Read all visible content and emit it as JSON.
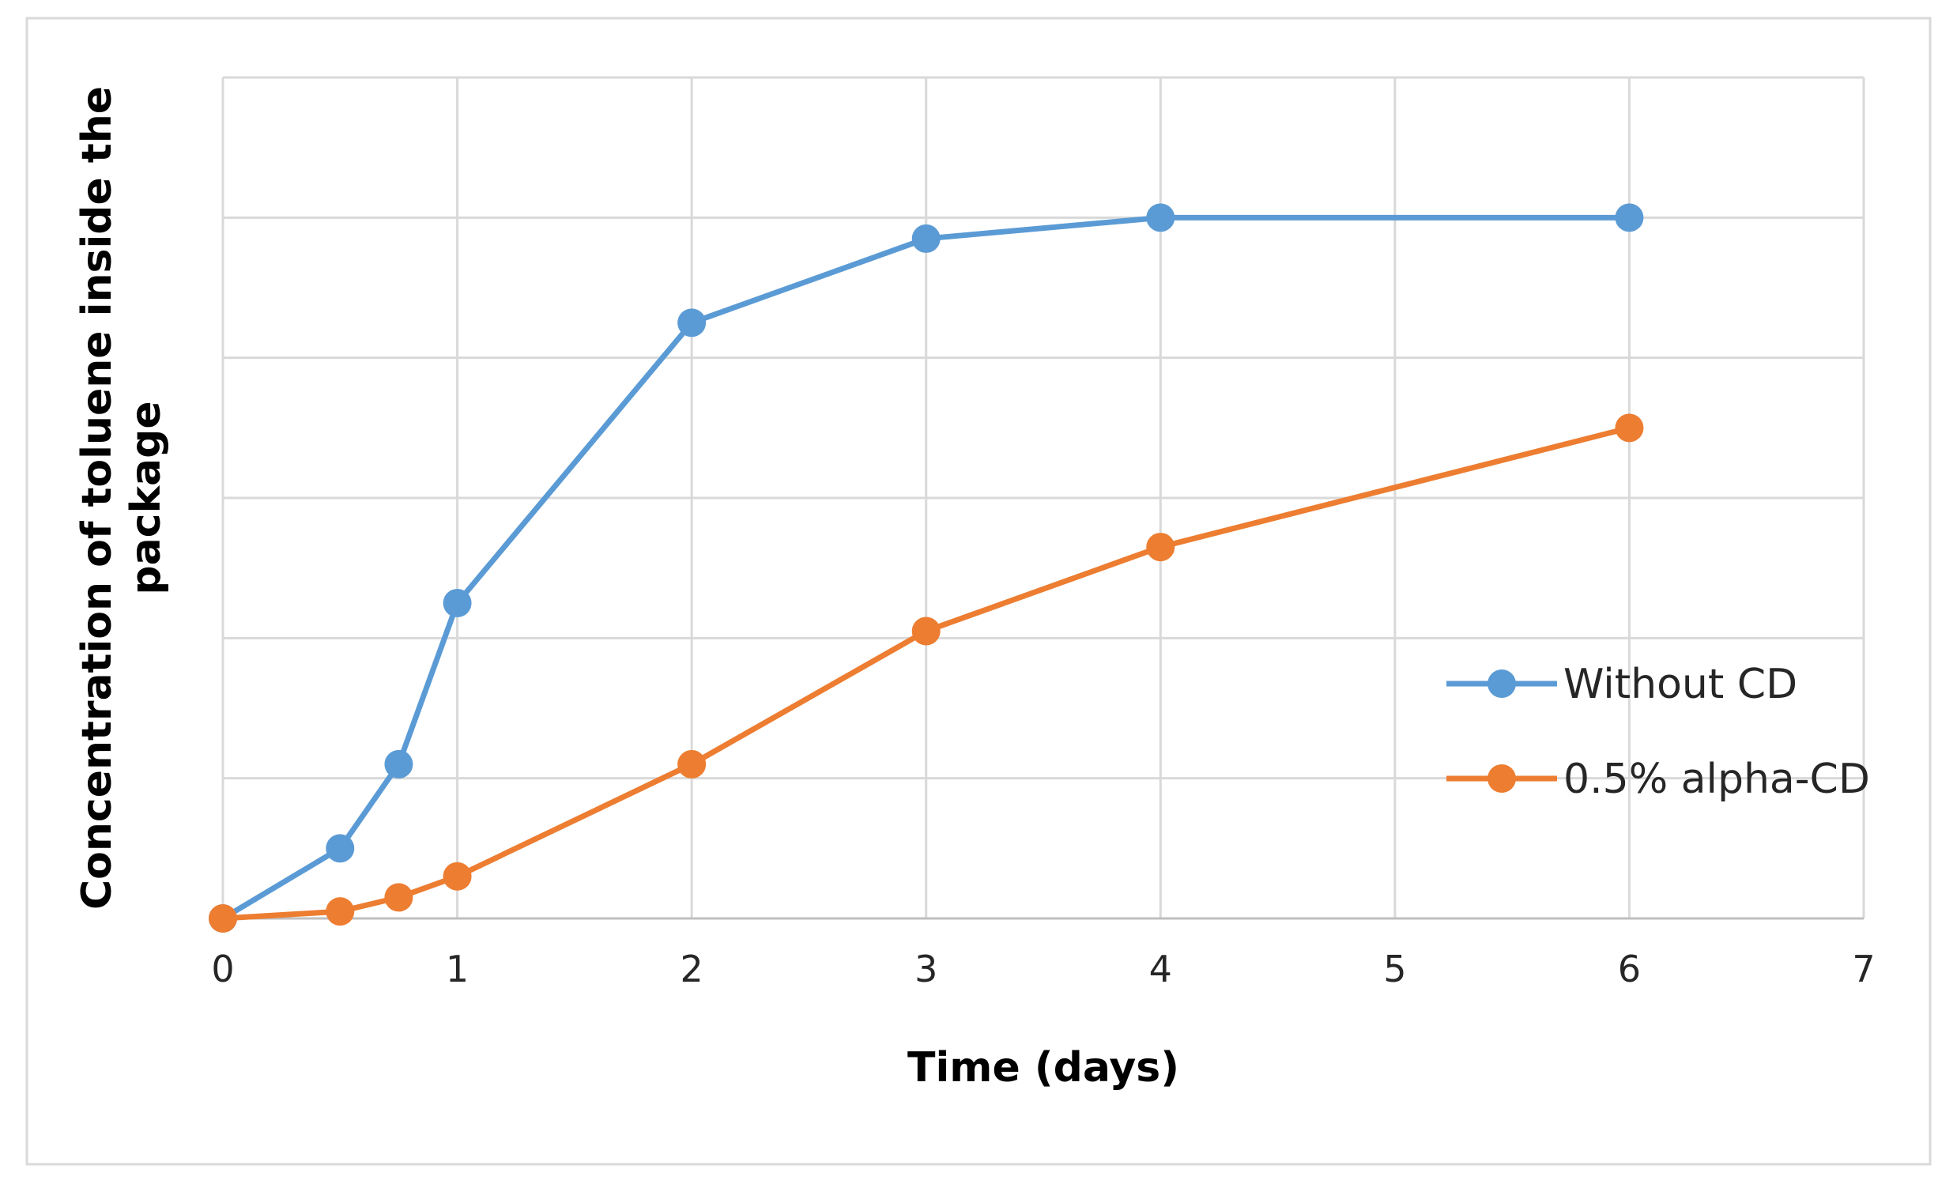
{
  "chart_data": {
    "type": "line",
    "title": "",
    "xlabel": "Time (days)",
    "ylabel": "Concentration of toluene inside the package",
    "xlim": [
      0,
      7
    ],
    "ylim": [
      0,
      6
    ],
    "y_ticks_labeled": false,
    "x_ticks": [
      "0",
      "1",
      "2",
      "3",
      "4",
      "5",
      "6",
      "7"
    ],
    "grid": true,
    "legend_position": "right",
    "series": [
      {
        "name": "Without CD",
        "color": "#5B9BD5",
        "marker": "circle",
        "x": [
          0,
          0.5,
          0.75,
          1,
          2,
          3,
          4,
          6
        ],
        "y": [
          0,
          0.5,
          1.1,
          2.25,
          4.25,
          4.85,
          5.0,
          5.0
        ]
      },
      {
        "name": "0.5% alpha-CD",
        "color": "#ED7D31",
        "marker": "circle",
        "x": [
          0,
          0.5,
          0.75,
          1,
          2,
          3,
          4,
          6
        ],
        "y": [
          0,
          0.05,
          0.15,
          0.3,
          1.1,
          2.05,
          2.65,
          3.5
        ]
      }
    ]
  }
}
